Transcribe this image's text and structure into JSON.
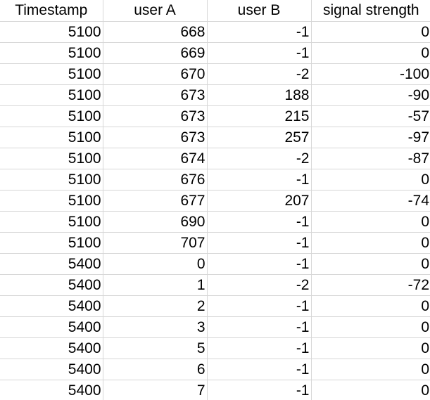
{
  "table": {
    "headers": [
      "Timestamp",
      "user A",
      "user B",
      "signal strength"
    ],
    "rows": [
      [
        "5100",
        "668",
        "-1",
        "0"
      ],
      [
        "5100",
        "669",
        "-1",
        "0"
      ],
      [
        "5100",
        "670",
        "-2",
        "-100"
      ],
      [
        "5100",
        "673",
        "188",
        "-90"
      ],
      [
        "5100",
        "673",
        "215",
        "-57"
      ],
      [
        "5100",
        "673",
        "257",
        "-97"
      ],
      [
        "5100",
        "674",
        "-2",
        "-87"
      ],
      [
        "5100",
        "676",
        "-1",
        "0"
      ],
      [
        "5100",
        "677",
        "207",
        "-74"
      ],
      [
        "5100",
        "690",
        "-1",
        "0"
      ],
      [
        "5100",
        "707",
        "-1",
        "0"
      ],
      [
        "5400",
        "0",
        "-1",
        "0"
      ],
      [
        "5400",
        "1",
        "-2",
        "-72"
      ],
      [
        "5400",
        "2",
        "-1",
        "0"
      ],
      [
        "5400",
        "3",
        "-1",
        "0"
      ],
      [
        "5400",
        "5",
        "-1",
        "0"
      ],
      [
        "5400",
        "6",
        "-1",
        "0"
      ],
      [
        "5400",
        "7",
        "-1",
        "0"
      ]
    ]
  },
  "colors": {
    "gridline": "#d7d7d7",
    "text": "#000000",
    "background": "#ffffff"
  }
}
